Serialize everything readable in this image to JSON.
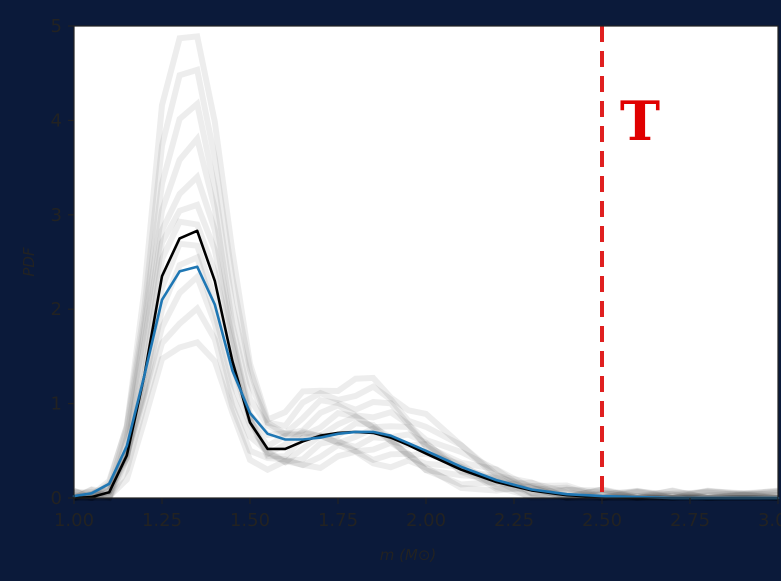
{
  "chart_data": {
    "type": "line",
    "title": "",
    "xlabel": "m (M⊙)",
    "ylabel": "PDF",
    "xlim": [
      1.0,
      3.0
    ],
    "ylim": [
      0,
      5
    ],
    "x_ticks": [
      "1.00",
      "1.25",
      "1.50",
      "1.75",
      "2.00",
      "2.25",
      "2.50",
      "2.75",
      "3.00"
    ],
    "y_ticks": [
      "0",
      "1",
      "2",
      "3",
      "4",
      "5"
    ],
    "grid": false,
    "legend": "none",
    "annotation": {
      "text": "T",
      "color": "#e00000"
    },
    "threshold": {
      "x": 2.5,
      "color": "#e02020",
      "style": "dashed"
    },
    "series": [
      {
        "color": "#000000",
        "x": [
          1.0,
          1.05,
          1.1,
          1.15,
          1.2,
          1.25,
          1.3,
          1.35,
          1.4,
          1.45,
          1.5,
          1.55,
          1.6,
          1.65,
          1.7,
          1.75,
          1.8,
          1.85,
          1.9,
          1.95,
          2.0,
          2.1,
          2.2,
          2.3,
          2.4,
          2.5,
          2.6,
          2.7,
          2.8,
          3.0
        ],
        "y": [
          0.0,
          0.01,
          0.06,
          0.45,
          1.3,
          2.35,
          2.75,
          2.83,
          2.3,
          1.45,
          0.8,
          0.52,
          0.52,
          0.6,
          0.66,
          0.69,
          0.7,
          0.69,
          0.64,
          0.56,
          0.47,
          0.3,
          0.17,
          0.08,
          0.03,
          0.01,
          0.0,
          0.0,
          0.0,
          0.0
        ]
      },
      {
        "color": "#1f77b4",
        "x": [
          1.0,
          1.05,
          1.1,
          1.15,
          1.2,
          1.25,
          1.3,
          1.35,
          1.4,
          1.45,
          1.5,
          1.55,
          1.6,
          1.65,
          1.7,
          1.75,
          1.8,
          1.85,
          1.9,
          1.95,
          2.0,
          2.1,
          2.2,
          2.3,
          2.4,
          2.5,
          2.6,
          2.7,
          2.8,
          3.0
        ],
        "y": [
          0.02,
          0.05,
          0.15,
          0.55,
          1.3,
          2.1,
          2.4,
          2.45,
          2.05,
          1.35,
          0.9,
          0.68,
          0.62,
          0.62,
          0.64,
          0.68,
          0.7,
          0.7,
          0.66,
          0.58,
          0.5,
          0.33,
          0.19,
          0.09,
          0.04,
          0.02,
          0.01,
          0.0,
          0.0,
          0.0
        ]
      }
    ]
  }
}
